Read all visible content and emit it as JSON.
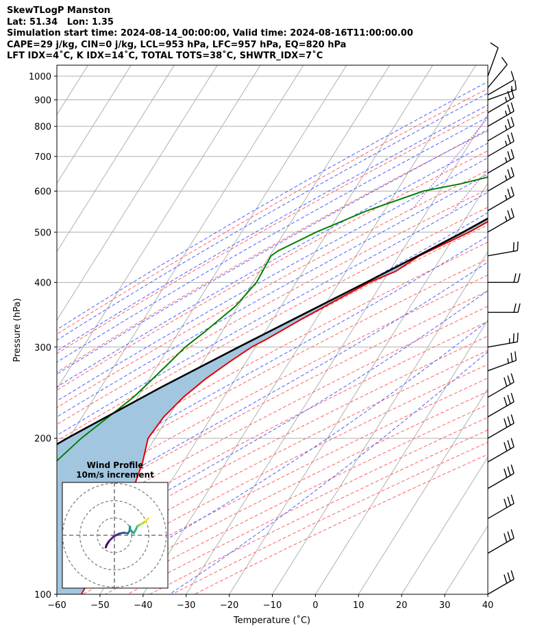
{
  "header": {
    "lines": [
      "SkewTLogP Manston",
      "Lat: 51.34   Lon: 1.35",
      "Simulation start time: 2024-08-14_00:00:00, Valid time: 2024-08-16T11:00:00.00",
      "CAPE=29 j/kg, CIN=0 j/kg, LCL=953 hPa, LFC=957 hPa, EQ=820 hPa",
      "LFT IDX=4˚C, K IDX=14˚C, TOTAL TOTS=38˚C, SHWTR_IDX=7˚C"
    ]
  },
  "colors": {
    "temperature": "#e00000",
    "dewpoint": "#008000",
    "parcel": "#000000",
    "cape_fill": "#a2c6e0",
    "dry_adiabat": "#ff6060",
    "moist_adiabat": "#4b5cff",
    "mixing_ratio": "#a040c0",
    "isotherm": "#a8a8a8",
    "isobar": "#b0b0b0"
  },
  "chart_data": {
    "type": "skewt",
    "xlabel": "Temperature (˚C)",
    "ylabel": "Pressure (hPa)",
    "xlim": [
      -60,
      40
    ],
    "ylim": [
      1050,
      100
    ],
    "x_ticks": [
      "−60",
      "−50",
      "−40",
      "−30",
      "−20",
      "−10",
      "0",
      "10",
      "20",
      "30",
      "40"
    ],
    "x_tick_values": [
      -60,
      -50,
      -40,
      -30,
      -20,
      -10,
      0,
      10,
      20,
      30,
      40
    ],
    "y_ticks": [
      "100",
      "200",
      "300",
      "400",
      "500",
      "600",
      "700",
      "800",
      "900",
      "1000"
    ],
    "y_tick_values": [
      100,
      200,
      300,
      400,
      500,
      600,
      700,
      800,
      900,
      1000
    ],
    "grid": true,
    "log_pressure": true,
    "temperature_profile": {
      "pressure": [
        1000,
        980,
        950,
        925,
        900,
        875,
        850,
        825,
        800,
        775,
        750,
        700,
        650,
        600,
        550,
        500,
        450,
        420,
        400,
        370,
        340,
        310,
        300,
        280,
        260,
        240,
        220,
        200,
        180,
        160,
        140,
        120,
        100
      ],
      "temperature": [
        19.5,
        17.8,
        16.3,
        15.2,
        14.2,
        13.6,
        14.1,
        13.8,
        12.6,
        11.3,
        9.9,
        5.8,
        0.9,
        -5.1,
        -11.4,
        -17.2,
        -25.3,
        -28.5,
        -33.0,
        -38.0,
        -43.3,
        -48.7,
        -50.9,
        -54.0,
        -57.0,
        -59.4,
        -61.1,
        -61.6,
        -59.4,
        -57.7,
        -55.9,
        -55.1,
        -54.3
      ]
    },
    "dewpoint_profile": {
      "pressure": [
        1000,
        980,
        950,
        925,
        900,
        875,
        850,
        825,
        800,
        775,
        750,
        700,
        650,
        620,
        600,
        550,
        500,
        460,
        450,
        400,
        360,
        320,
        300,
        280,
        250,
        240,
        220,
        200,
        180,
        160,
        150,
        140,
        130,
        120,
        100
      ],
      "dewpoint": [
        17.0,
        16.8,
        16.1,
        14.7,
        13.0,
        11.0,
        8.5,
        5.1,
        1.0,
        -3.1,
        -5.1,
        -10.9,
        -17.7,
        -26.1,
        -33.8,
        -44.0,
        -52.7,
        -58.8,
        -59.7,
        -59.2,
        -60.6,
        -64.1,
        -66.3,
        -67.7,
        -70.1,
        -71.0,
        -73.9,
        -77.1,
        -79.6,
        -79.8,
        -78.0,
        -75.9,
        -73.6,
        -71.7,
        -66.6
      ]
    },
    "parcel_profile": {
      "pressure": [
        1000,
        950,
        900,
        850,
        800,
        750,
        700,
        650,
        600,
        550,
        500,
        450,
        400,
        350,
        300,
        250,
        200,
        150,
        100
      ],
      "temperature": [
        19.5,
        16.1,
        13.3,
        10.5,
        7.6,
        4.4,
        0.9,
        -3.0,
        -7.5,
        -12.7,
        -18.6,
        -25.6,
        -33.7,
        -43.1,
        -53.9,
        -66.3,
        -80.4,
        -96.8,
        -116.7
      ]
    },
    "wind_barbs": {
      "pressure": [
        1000,
        950,
        920,
        900,
        850,
        800,
        750,
        700,
        650,
        600,
        550,
        500,
        450,
        400,
        350,
        300,
        270,
        240,
        220,
        200,
        180,
        160,
        140,
        120,
        100
      ],
      "speed_kt": [
        10,
        10,
        10,
        15,
        25,
        25,
        25,
        25,
        25,
        25,
        25,
        25,
        20,
        20,
        20,
        25,
        25,
        30,
        30,
        30,
        30,
        30,
        30,
        30,
        30
      ],
      "direction_deg": [
        200,
        220,
        240,
        250,
        240,
        240,
        240,
        240,
        240,
        240,
        240,
        240,
        260,
        270,
        270,
        260,
        250,
        240,
        240,
        240,
        240,
        240,
        240,
        240,
        240
      ]
    },
    "hodograph": {
      "title": "Wind Profile",
      "subtitle": "10m/s increment",
      "u": [
        -2.0,
        -1.8,
        -1.2,
        -0.2,
        1.2,
        2.3,
        3.1,
        3.5,
        3.6,
        3.7,
        4.5,
        5.0,
        5.3,
        6.0,
        6.6,
        7.2,
        7.9
      ],
      "v": [
        -2.8,
        -2.2,
        -1.3,
        -0.3,
        0.4,
        0.6,
        0.4,
        1.0,
        2.0,
        1.2,
        0.5,
        1.4,
        2.1,
        2.5,
        2.8,
        3.3,
        3.9
      ]
    }
  }
}
